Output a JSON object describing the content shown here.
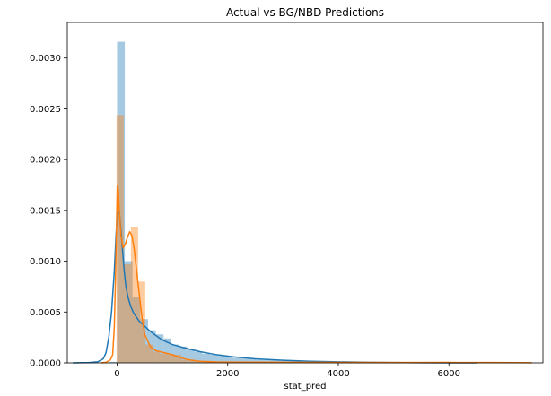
{
  "chart_data": {
    "type": "histogram",
    "title": "Actual vs BG/NBD Predictions",
    "xlabel": "stat_pred",
    "ylabel": "",
    "xlim": [
      -900,
      7700
    ],
    "ylim": [
      0,
      0.00335
    ],
    "x_ticks": [
      0,
      2000,
      4000,
      6000
    ],
    "y_ticks": [
      0.0,
      0.0005,
      0.001,
      0.0015,
      0.002,
      0.0025,
      0.003
    ],
    "x_tick_labels": [
      "0",
      "2000",
      "4000",
      "6000"
    ],
    "y_tick_labels": [
      "0.0000",
      "0.0005",
      "0.0010",
      "0.0015",
      "0.0020",
      "0.0025",
      "0.0030"
    ],
    "grid": false,
    "series": [
      {
        "color": "#1f77b4",
        "hist_bin_width": 140,
        "hist_bins": [
          [
            -140,
            1e-05
          ],
          [
            0,
            0.00316
          ],
          [
            140,
            0.001
          ],
          [
            280,
            0.00065
          ],
          [
            420,
            0.00043
          ],
          [
            560,
            0.00032
          ],
          [
            700,
            0.00028
          ],
          [
            840,
            0.00024
          ],
          [
            980,
            0.00018
          ],
          [
            1120,
            0.00016
          ],
          [
            1260,
            0.00014
          ],
          [
            1400,
            0.00011
          ],
          [
            1540,
            9e-05
          ],
          [
            1680,
            8e-05
          ],
          [
            1820,
            7e-05
          ],
          [
            1960,
            6e-05
          ],
          [
            2100,
            5e-05
          ],
          [
            2240,
            5e-05
          ],
          [
            2380,
            4e-05
          ],
          [
            2520,
            3e-05
          ],
          [
            2660,
            3e-05
          ],
          [
            2800,
            3e-05
          ],
          [
            2940,
            2e-05
          ],
          [
            3080,
            2e-05
          ],
          [
            3220,
            2e-05
          ],
          [
            3360,
            1e-05
          ],
          [
            3500,
            1e-05
          ],
          [
            3640,
            1e-05
          ],
          [
            3780,
            1e-05
          ],
          [
            3920,
            1e-05
          ],
          [
            4060,
            1e-05
          ],
          [
            4200,
            1e-05
          ],
          [
            4340,
            5e-06
          ],
          [
            4480,
            5e-06
          ],
          [
            4620,
            5e-06
          ]
        ],
        "kde": [
          [
            -800,
            0.0
          ],
          [
            -500,
            3e-06
          ],
          [
            -350,
            1e-05
          ],
          [
            -250,
            4e-05
          ],
          [
            -200,
            0.0001
          ],
          [
            -150,
            0.00025
          ],
          [
            -100,
            0.0005
          ],
          [
            -50,
            0.0009
          ],
          [
            -20,
            0.00125
          ],
          [
            0,
            0.00143
          ],
          [
            20,
            0.00149
          ],
          [
            45,
            0.00146
          ],
          [
            70,
            0.0013
          ],
          [
            100,
            0.0011
          ],
          [
            130,
            0.0009
          ],
          [
            160,
            0.00075
          ],
          [
            200,
            0.00064
          ],
          [
            250,
            0.00055
          ],
          [
            300,
            0.00049
          ],
          [
            400,
            0.00041
          ],
          [
            500,
            0.00036
          ],
          [
            600,
            0.00031
          ],
          [
            700,
            0.00027
          ],
          [
            800,
            0.00023
          ],
          [
            1000,
            0.00018
          ],
          [
            1200,
            0.00015
          ],
          [
            1500,
            0.00011
          ],
          [
            1800,
            8e-05
          ],
          [
            2100,
            6e-05
          ],
          [
            2500,
            4e-05
          ],
          [
            3000,
            2.5e-05
          ],
          [
            3500,
            1.5e-05
          ],
          [
            4000,
            1e-05
          ],
          [
            4500,
            6e-06
          ],
          [
            5000,
            3e-06
          ],
          [
            5500,
            1.5e-06
          ],
          [
            6000,
            5e-07
          ],
          [
            6500,
            0.0
          ]
        ]
      },
      {
        "color": "#ff7f0e",
        "hist_bin_width": 130,
        "hist_bins": [
          [
            -10,
            0.00244
          ],
          [
            120,
            0.00097
          ],
          [
            250,
            0.00134
          ],
          [
            380,
            0.0008
          ],
          [
            510,
            0.00018
          ],
          [
            640,
            0.00011
          ],
          [
            770,
            9e-05
          ],
          [
            900,
            9e-05
          ],
          [
            1030,
            8e-05
          ],
          [
            1160,
            3e-05
          ],
          [
            1290,
            2e-05
          ],
          [
            1420,
            1e-05
          ],
          [
            1550,
            1e-05
          ],
          [
            1680,
            8e-06
          ],
          [
            1810,
            6e-06
          ],
          [
            1940,
            5e-06
          ],
          [
            2070,
            5e-06
          ],
          [
            2200,
            4e-06
          ],
          [
            2330,
            4e-06
          ],
          [
            2460,
            3e-06
          ],
          [
            2590,
            3e-06
          ],
          [
            2720,
            2e-06
          ],
          [
            3500,
            2e-06
          ],
          [
            4500,
            2e-06
          ],
          [
            5500,
            2e-06
          ],
          [
            6600,
            3e-06
          ],
          [
            7100,
            2e-06
          ]
        ],
        "kde": [
          [
            -300,
            0.0
          ],
          [
            -200,
            5e-06
          ],
          [
            -120,
            3e-05
          ],
          [
            -80,
            8e-05
          ],
          [
            -50,
            0.00035
          ],
          [
            -25,
            0.0009
          ],
          [
            -5,
            0.0015
          ],
          [
            5,
            0.00175
          ],
          [
            20,
            0.0017
          ],
          [
            40,
            0.0015
          ],
          [
            70,
            0.00125
          ],
          [
            110,
            0.00113
          ],
          [
            150,
            0.00117
          ],
          [
            190,
            0.00124
          ],
          [
            230,
            0.00129
          ],
          [
            270,
            0.00125
          ],
          [
            310,
            0.00112
          ],
          [
            350,
            0.00092
          ],
          [
            400,
            0.00068
          ],
          [
            450,
            0.00045
          ],
          [
            500,
            0.00028
          ],
          [
            600,
            0.00016
          ],
          [
            700,
            0.00012
          ],
          [
            850,
            0.0001
          ],
          [
            1000,
            8e-05
          ],
          [
            1150,
            5e-05
          ],
          [
            1300,
            3e-05
          ],
          [
            1500,
            1.5e-05
          ],
          [
            1800,
            9e-06
          ],
          [
            2200,
            7e-06
          ],
          [
            3000,
            5e-06
          ],
          [
            4000,
            4e-06
          ],
          [
            5000,
            3e-06
          ],
          [
            6000,
            4e-06
          ],
          [
            6800,
            3e-06
          ],
          [
            7500,
            1e-06
          ]
        ]
      }
    ]
  }
}
